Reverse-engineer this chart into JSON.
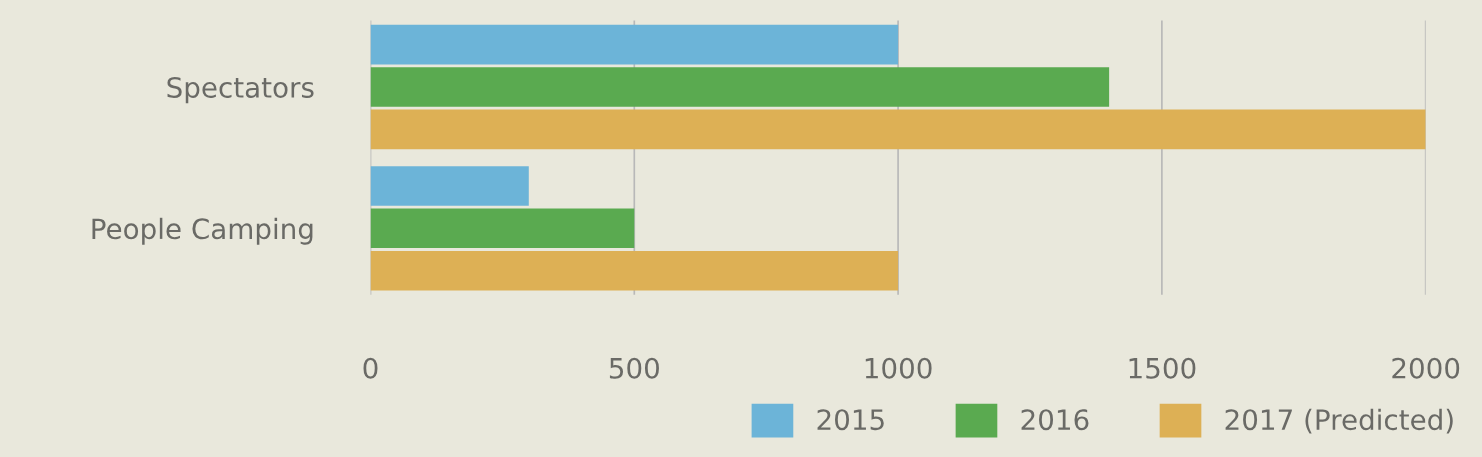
{
  "chart_data": {
    "type": "bar",
    "orientation": "horizontal",
    "categories": [
      "Spectators",
      "People Camping"
    ],
    "series": [
      {
        "name": "2015",
        "color": "#6cb4d8",
        "values": [
          1000,
          300
        ]
      },
      {
        "name": "2016",
        "color": "#5aaa50",
        "values": [
          1400,
          500
        ]
      },
      {
        "name": "2017 (Predicted)",
        "color": "#ddb055",
        "values": [
          2000,
          1000
        ]
      }
    ],
    "xlim": [
      0,
      2000
    ],
    "xticks": [
      0,
      500,
      1000,
      1500,
      2000
    ],
    "grid": "x",
    "legend": "bottom right"
  }
}
